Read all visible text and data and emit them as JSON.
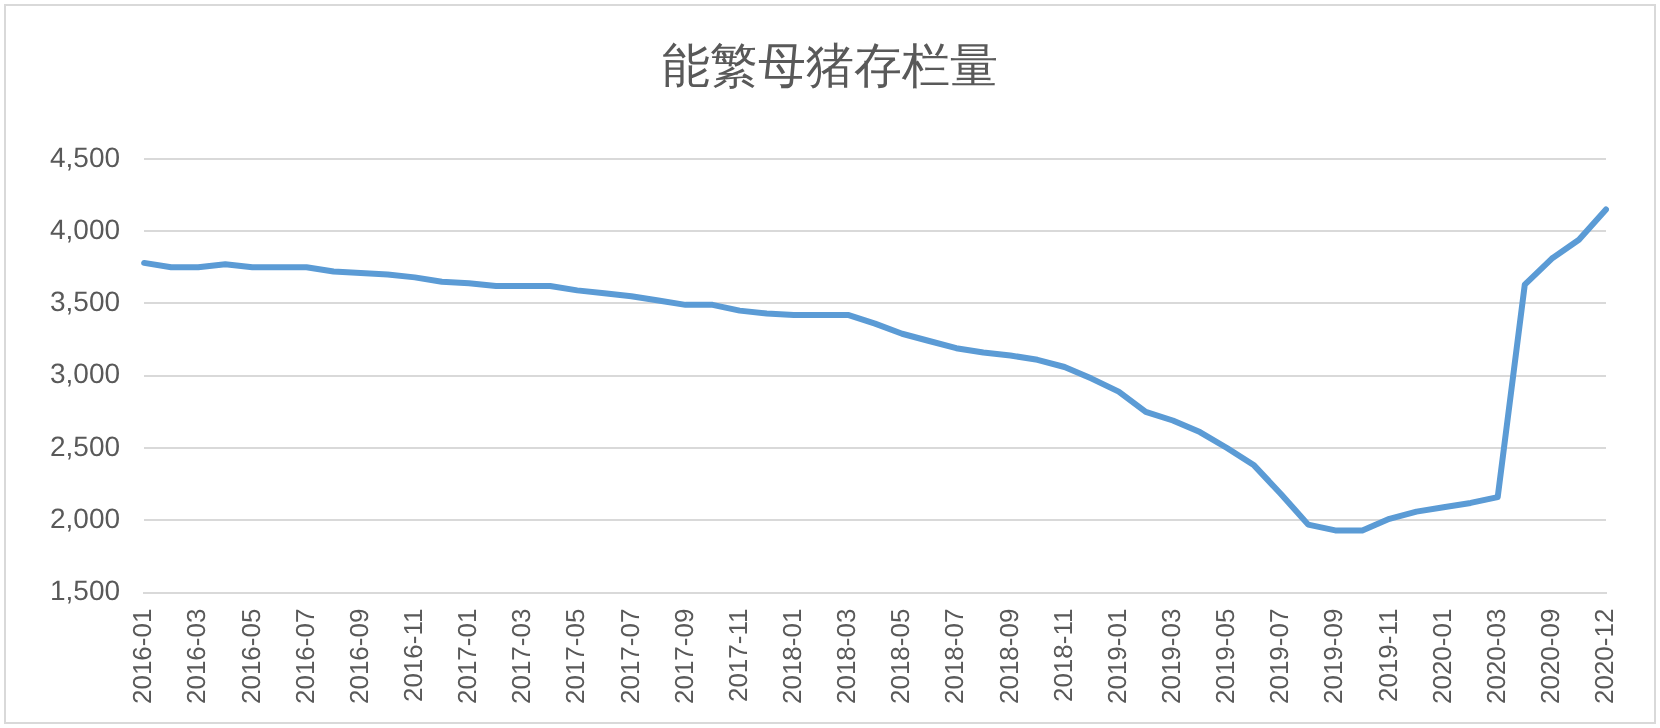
{
  "chart_data": {
    "type": "line",
    "title": "能繁母猪存栏量",
    "categories": [
      "2016-01",
      null,
      "2016-03",
      null,
      "2016-05",
      null,
      "2016-07",
      null,
      "2016-09",
      null,
      "2016-11",
      null,
      "2017-01",
      null,
      "2017-03",
      null,
      "2017-05",
      null,
      "2017-07",
      null,
      "2017-09",
      null,
      "2017-11",
      null,
      "2018-01",
      null,
      "2018-03",
      null,
      "2018-05",
      null,
      "2018-07",
      null,
      "2018-09",
      null,
      "2018-11",
      null,
      "2019-01",
      null,
      "2019-03",
      null,
      "2019-05",
      null,
      "2019-07",
      null,
      "2019-09",
      null,
      "2019-11",
      null,
      "2020-01",
      null,
      "2020-03",
      null,
      "2020-09",
      null,
      "2020-12"
    ],
    "series": [
      {
        "color": "#5b9bd5",
        "values": [
          3780,
          3750,
          3750,
          3770,
          3750,
          3750,
          3750,
          3720,
          3710,
          3700,
          3680,
          3650,
          3640,
          3620,
          3620,
          3620,
          3590,
          3570,
          3550,
          3520,
          3490,
          3490,
          3450,
          3430,
          3420,
          3420,
          3420,
          3360,
          3290,
          3240,
          3190,
          3160,
          3140,
          3110,
          3060,
          2980,
          2890,
          2750,
          2690,
          2610,
          2500,
          2380,
          2180,
          1970,
          1930,
          1930,
          2010,
          2060,
          2090,
          2120,
          2160,
          3630,
          3810,
          3940,
          4150
        ]
      }
    ],
    "ylim": [
      1500,
      4500
    ],
    "yticks": [
      {
        "value": 1500,
        "label": "1,500"
      },
      {
        "value": 2000,
        "label": "2,000"
      },
      {
        "value": 2500,
        "label": "2,500"
      },
      {
        "value": 3000,
        "label": "3,000"
      },
      {
        "value": 3500,
        "label": "3,500"
      },
      {
        "value": 4000,
        "label": "4,000"
      },
      {
        "value": 4500,
        "label": "4,500"
      }
    ],
    "grid": "y",
    "legend": false,
    "marker": "none",
    "line_style": "solid"
  }
}
